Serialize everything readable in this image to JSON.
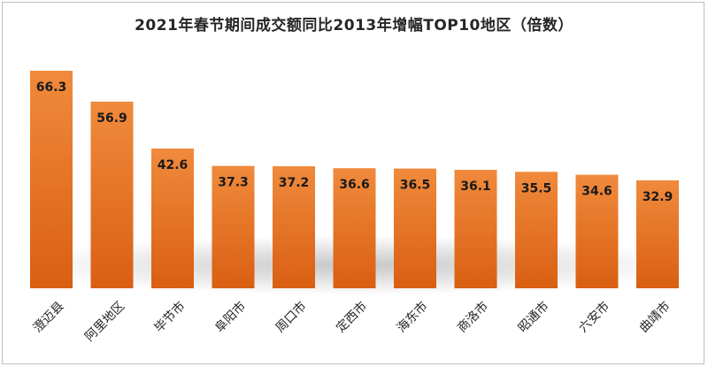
{
  "chart_data": {
    "type": "bar",
    "title": "2021年春节期间成交额同比2013年增幅TOP10地区（倍数）",
    "categories": [
      "澄迈县",
      "阿里地区",
      "毕节市",
      "阜阳市",
      "周口市",
      "定西市",
      "海东市",
      "商洛市",
      "昭通市",
      "六安市",
      "曲靖市"
    ],
    "values": [
      66.3,
      56.9,
      42.6,
      37.3,
      37.2,
      36.6,
      36.5,
      36.1,
      35.5,
      34.6,
      32.9
    ],
    "value_labels": [
      "66.3",
      "56.9",
      "42.6",
      "37.3",
      "37.2",
      "36.6",
      "36.5",
      "36.1",
      "35.5",
      "34.6",
      "32.9"
    ],
    "ylim": [
      0,
      75
    ],
    "grid": false,
    "legend": "none",
    "xlabel": "",
    "ylabel": ""
  },
  "colors": {
    "bar_top": "#f08a3c",
    "bar_bottom": "#d95f12",
    "label_text": "#1a1a1a",
    "title_text": "#262626"
  }
}
